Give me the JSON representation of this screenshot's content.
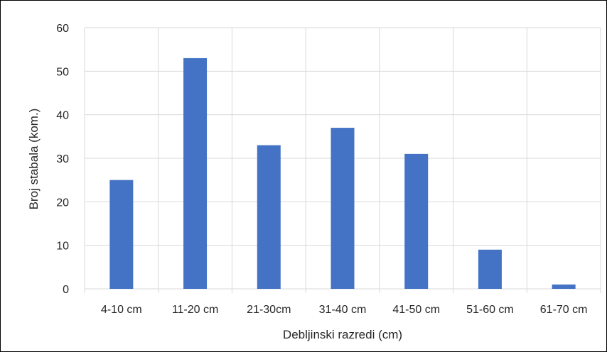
{
  "chart_data": {
    "type": "bar",
    "title": "",
    "xlabel": "Debljinski razredi (cm)",
    "ylabel": "Broj stabala (kom.)",
    "categories": [
      "4-10 cm",
      "11-20 cm",
      "21-30cm",
      "31-40 cm",
      "41-50 cm",
      "51-60 cm",
      "61-70 cm"
    ],
    "values": [
      25,
      53,
      33,
      37,
      31,
      9,
      1
    ],
    "ylim": [
      0,
      60
    ],
    "yticks": [
      0,
      10,
      20,
      30,
      40,
      50,
      60
    ],
    "grid": "both",
    "legend": "none",
    "bar_color": "#4472C4",
    "grid_color": "#D9D9D9"
  }
}
